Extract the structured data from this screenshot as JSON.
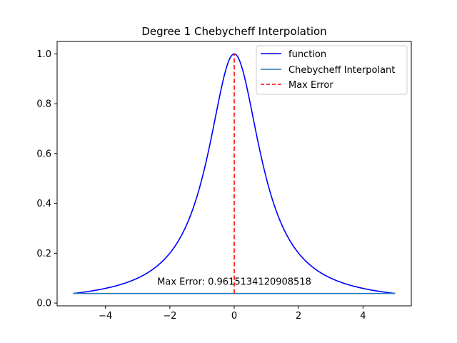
{
  "chart_data": {
    "type": "line",
    "title": "Degree 1 Chebycheff Interpolation",
    "xlabel": "",
    "ylabel": "",
    "xlim": [
      -5.5,
      5.5
    ],
    "ylim": [
      -0.0112,
      1.05
    ],
    "x_ticks": [
      -4,
      -2,
      0,
      2,
      4
    ],
    "x_tick_labels": [
      "−4",
      "−2",
      "0",
      "2",
      "4"
    ],
    "y_ticks": [
      0.0,
      0.2,
      0.4,
      0.6,
      0.8,
      1.0
    ],
    "y_tick_labels": [
      "0.0",
      "0.2",
      "0.4",
      "0.6",
      "0.8",
      "1.0"
    ],
    "grid": false,
    "legend_position": "top-right",
    "series": [
      {
        "name": "function",
        "kind": "runge",
        "formula": "1/(1+x^2)",
        "domain": [
          -5,
          5
        ],
        "color": "#0000ff",
        "style": "solid"
      },
      {
        "name": "Chebycheff Interpolant",
        "kind": "linear",
        "x": [
          -5,
          5
        ],
        "y": [
          0.0385,
          0.0385
        ],
        "color": "#1f77b4",
        "style": "solid"
      },
      {
        "name": "Max Error",
        "kind": "vline",
        "x": [
          0,
          0
        ],
        "y": [
          0.0385,
          1.0
        ],
        "color": "#ff0000",
        "style": "dashed"
      }
    ],
    "annotation": {
      "text": "Max Error: 0.9615134120908518",
      "x": 0,
      "y": 0.085
    }
  }
}
